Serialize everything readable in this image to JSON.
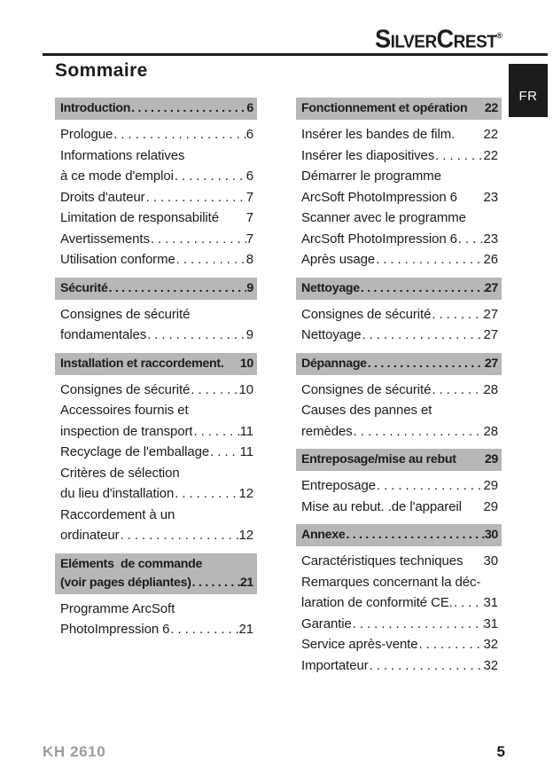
{
  "brand": {
    "logo_text": "SilverCrest",
    "logo_reg": "®"
  },
  "language_tab": "FR",
  "page_title": "Sommaire",
  "footer": {
    "model": "KH 2610",
    "page_number": "5"
  },
  "colors": {
    "section_bg": "#b7b7b7",
    "ink": "#1c1c1c",
    "tab_bg": "#1c1c1c",
    "tab_text": "#ffffff",
    "footer_model_gray": "#9c9c9c"
  },
  "toc": {
    "columns": [
      {
        "sections": [
          {
            "header": {
              "lines": [
                {
                  "text": "Introduction",
                  "page": "6",
                  "dots": true
                }
              ]
            },
            "entries": [
              {
                "lines": [
                  {
                    "text": "Prologue",
                    "page": "6",
                    "dots": true
                  }
                ]
              },
              {
                "lines": [
                  {
                    "text": "Informations relatives"
                  },
                  {
                    "text": "à ce mode d'emploi",
                    "page": "6",
                    "dots": true
                  }
                ]
              },
              {
                "lines": [
                  {
                    "text": "Droits d'auteur",
                    "page": "7",
                    "dots": true
                  }
                ]
              },
              {
                "lines": [
                  {
                    "text": "Limitation de responsabilité",
                    "page": "7",
                    "dots": false
                  }
                ]
              },
              {
                "lines": [
                  {
                    "text": "Avertissements",
                    "page": "7",
                    "dots": true
                  }
                ]
              },
              {
                "lines": [
                  {
                    "text": "Utilisation conforme",
                    "page": "8",
                    "dots": true
                  }
                ]
              }
            ]
          },
          {
            "header": {
              "lines": [
                {
                  "text": "Sécurité",
                  "page": "9",
                  "dots": true
                }
              ]
            },
            "entries": [
              {
                "lines": [
                  {
                    "text": "Consignes de sécurité"
                  },
                  {
                    "text": "fondamentales",
                    "page": "9",
                    "dots": true
                  }
                ]
              }
            ]
          },
          {
            "header": {
              "lines": [
                {
                  "text": "Installation et raccordement.",
                  "page": "10",
                  "dots": false
                }
              ]
            },
            "entries": [
              {
                "lines": [
                  {
                    "text": "Consignes de sécurité",
                    "page": "10",
                    "dots": true
                  }
                ]
              },
              {
                "lines": [
                  {
                    "text": "Accessoires fournis et"
                  },
                  {
                    "text": "inspection de transport",
                    "page": "11",
                    "dots": true
                  }
                ]
              },
              {
                "lines": [
                  {
                    "text": "Recyclage de l'emballage",
                    "page": "11",
                    "dots": true
                  }
                ]
              },
              {
                "lines": [
                  {
                    "text": "Critères de sélection"
                  },
                  {
                    "text": "du lieu d'installation",
                    "page": "12",
                    "dots": true
                  }
                ]
              },
              {
                "lines": [
                  {
                    "text": "Raccordement à un"
                  },
                  {
                    "text": "ordinateur",
                    "page": "12",
                    "dots": true
                  }
                ]
              }
            ]
          },
          {
            "header": {
              "lines": [
                {
                  "text": "Eléments  de commande"
                },
                {
                  "text": "(voir pages dépliantes)",
                  "page": "21",
                  "dots": true
                }
              ]
            },
            "entries": [
              {
                "lines": [
                  {
                    "text": "Programme ArcSoft"
                  },
                  {
                    "text": "PhotoImpression 6",
                    "page": "21",
                    "dots": true
                  }
                ]
              }
            ]
          }
        ]
      },
      {
        "sections": [
          {
            "header": {
              "lines": [
                {
                  "text": "Fonctionnement et opération",
                  "page": "22",
                  "dots": false
                }
              ]
            },
            "entries": [
              {
                "lines": [
                  {
                    "text": "Insérer les bandes de film.",
                    "page": "22",
                    "dots": false
                  }
                ]
              },
              {
                "lines": [
                  {
                    "text": "Insérer les diapositives",
                    "page": "22",
                    "dots": true
                  }
                ]
              },
              {
                "lines": [
                  {
                    "text": "Démarrer le programme"
                  },
                  {
                    "text": "ArcSoft PhotoImpression 6",
                    "page": "23",
                    "dots": false
                  }
                ]
              },
              {
                "lines": [
                  {
                    "text": "Scanner avec le programme"
                  },
                  {
                    "text": "ArcSoft PhotoImpression 6",
                    "page": "23",
                    "dots": true
                  }
                ]
              },
              {
                "lines": [
                  {
                    "text": "Après usage",
                    "page": "26",
                    "dots": true
                  }
                ]
              }
            ]
          },
          {
            "header": {
              "lines": [
                {
                  "text": "Nettoyage",
                  "page": "27",
                  "dots": true
                }
              ]
            },
            "entries": [
              {
                "lines": [
                  {
                    "text": "Consignes de sécurité",
                    "page": "27",
                    "dots": true
                  }
                ]
              },
              {
                "lines": [
                  {
                    "text": "Nettoyage",
                    "page": "27",
                    "dots": true
                  }
                ]
              }
            ]
          },
          {
            "header": {
              "lines": [
                {
                  "text": "Dépannage",
                  "page": "27",
                  "dots": true
                }
              ]
            },
            "entries": [
              {
                "lines": [
                  {
                    "text": "Consignes de sécurité",
                    "page": "28",
                    "dots": true
                  }
                ]
              },
              {
                "lines": [
                  {
                    "text": "Causes des pannes et"
                  },
                  {
                    "text": "remèdes",
                    "page": "28",
                    "dots": true
                  }
                ]
              }
            ]
          },
          {
            "header": {
              "lines": [
                {
                  "text": "Entreposage/mise au rebut",
                  "page": "29",
                  "dots": false
                }
              ]
            },
            "entries": [
              {
                "lines": [
                  {
                    "text": "Entreposage",
                    "page": "29",
                    "dots": true
                  }
                ]
              },
              {
                "lines": [
                  {
                    "text": "Mise au rebut. .de l'appareil",
                    "page": "29",
                    "dots": false
                  }
                ]
              }
            ]
          },
          {
            "header": {
              "lines": [
                {
                  "text": "Annexe",
                  "page": "30",
                  "dots": true
                }
              ]
            },
            "entries": [
              {
                "lines": [
                  {
                    "text": "Caractéristiques techniques",
                    "page": "30",
                    "dots": false
                  }
                ]
              },
              {
                "lines": [
                  {
                    "text": "Remarques concernant la déc-"
                  },
                  {
                    "text": "laration de conformité CE.",
                    "page": "31",
                    "dots": true
                  }
                ]
              },
              {
                "lines": [
                  {
                    "text": "Garantie",
                    "page": "31",
                    "dots": true
                  }
                ]
              },
              {
                "lines": [
                  {
                    "text": "Service après-vente",
                    "page": "32",
                    "dots": true
                  }
                ]
              },
              {
                "lines": [
                  {
                    "text": "Importateur",
                    "page": "32",
                    "dots": true
                  }
                ]
              }
            ]
          }
        ]
      }
    ]
  }
}
